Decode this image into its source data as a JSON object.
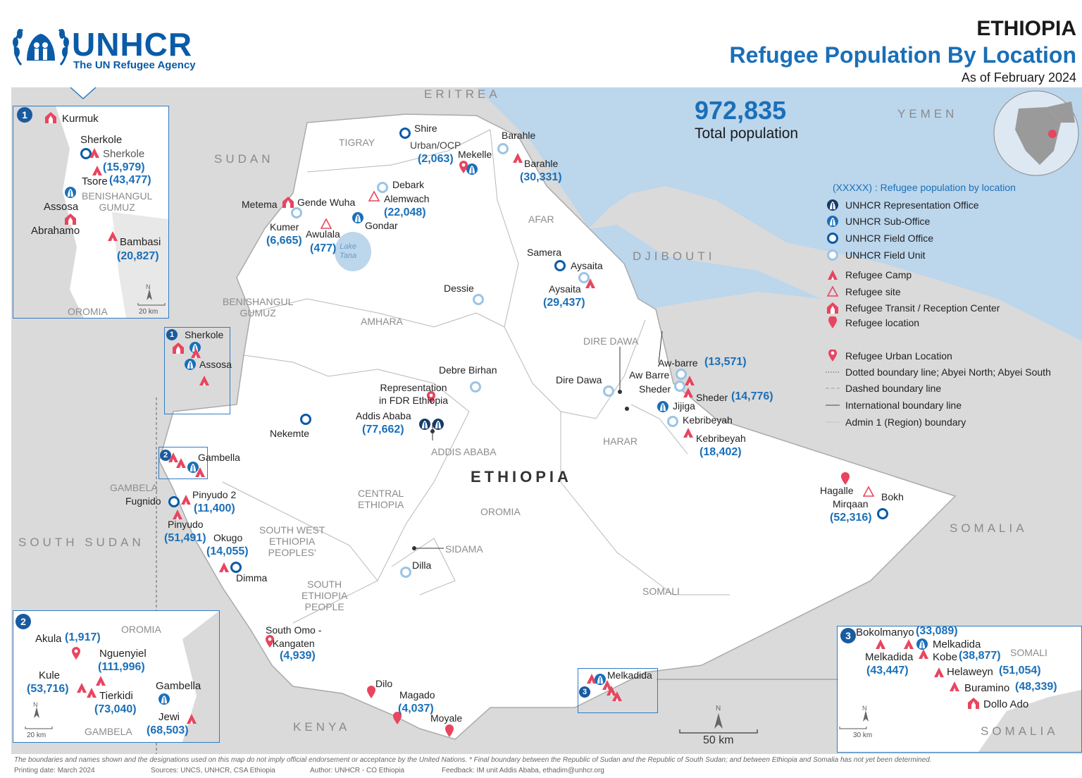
{
  "header": {
    "logo_main": "UNHCR",
    "logo_sub": "The UN Refugee Agency",
    "country": "ETHIOPIA",
    "title": "Refugee Population By Location",
    "date": "As of February 2024"
  },
  "total": {
    "value": "972,835",
    "label": "Total population"
  },
  "countries": {
    "eritrea": "ERITREA",
    "sudan": "SUDAN",
    "djibouti": "DJIBOUTI",
    "yemen": "YEMEN",
    "south_sudan": "SOUTH SUDAN",
    "somalia": "SOMALIA",
    "kenya": "KENYA",
    "ethiopia": "ETHIOPIA"
  },
  "regions": {
    "tigray": "TIGRAY",
    "afar": "AFAR",
    "amhara": "AMHARA",
    "benishangul": "BENISHANGUL\nGUMUZ",
    "dire_dawa": "DIRE DAWA",
    "harar": "HARAR",
    "addis": "ADDIS ABABA",
    "oromia": "OROMIA",
    "central": "CENTRAL\nETHIOPIA",
    "gambela": "GAMBELA",
    "sw": "SOUTH WEST\nETHIOPIA\nPEOPLES'",
    "sidama": "SIDAMA",
    "south": "SOUTH\nETHIOPIA\nPEOPLE",
    "somali": "SOMALI"
  },
  "locations": {
    "shire": "Shire",
    "urban_ocp": "Urban/OCP",
    "urban_ocp_pop": "(2,063)",
    "mekelle": "Mekelle",
    "barahle_fu": "Barahle",
    "barahle": "Barahle",
    "barahle_pop": "(30,331)",
    "debark": "Debark",
    "alemwach": "Alemwach",
    "alemwach_pop": "(22,048)",
    "metema": "Metema",
    "gende_wuha": "Gende Wuha",
    "kumer": "Kumer",
    "kumer_pop": "(6,665)",
    "awulala": "Awulala",
    "awulala_pop": "(477)",
    "gondar": "Gondar",
    "lake_tana": "Lake\nTana",
    "samera": "Samera",
    "aysaita_fo": "Aysaita",
    "aysaita": "Aysaita",
    "aysaita_pop": "(29,437)",
    "dessie": "Dessie",
    "debre_birhan": "Debre Birhan",
    "representation": "Representation\nin FDR Ethiopia",
    "addis": "Addis Ababa",
    "addis_pop": "(77,662)",
    "nekemte": "Nekemte",
    "dire_dawa": "Dire Dawa",
    "aw_barre": "Aw Barre",
    "aw_barre2": "Aw-barre",
    "aw_barre_pop": "(13,571)",
    "sheder": "Sheder",
    "sheder2": "Sheder",
    "sheder_pop": "(14,776)",
    "jijiga": "Jijiga",
    "kebribeyah_fu": "Kebribeyah",
    "kebribeyah": "Kebribeyah",
    "kebribeyah_pop": "(18,402)",
    "hagalle": "Hagalle",
    "mirqaan": "Mirqaan",
    "bokh": "Bokh",
    "bokh_pop": "(52,316)",
    "sherkole": "Sherkole",
    "assosa": "Assosa",
    "gambella": "Gambella",
    "fugnido": "Fugnido",
    "pinyudo2": "Pinyudo 2",
    "pinyudo2_pop": "(11,400)",
    "pinyudo": "Pinyudo",
    "pinyudo_pop": "(51,491)",
    "okugo": "Okugo",
    "okugo_pop": "(14,055)",
    "dimma": "Dimma",
    "dilla": "Dilla",
    "south_omo": "South Omo -\nKangaten",
    "south_omo_pop": "(4,939)",
    "dilo": "Dilo",
    "magado": "Magado",
    "magado_pop": "(4,037)",
    "moyale": "Moyale",
    "melkadida": "Melkadida"
  },
  "inset1": {
    "num": "1",
    "kurmuk": "Kurmuk",
    "sherkole_lbl": "Sherkole",
    "sherkole_camp": "Sherkole",
    "sherkole_pop": "(15,979)",
    "tsore": "Tsore",
    "tsore_pop": "(43,477)",
    "benishangul": "BENISHANGUL\nGUMUZ",
    "assosa": "Assosa",
    "abrahamo": "Abrahamo",
    "bambasi": "Bambasi",
    "bambasi_pop": "(20,827)",
    "oromia": "OROMIA",
    "scale": "20 km",
    "north": "N"
  },
  "inset2": {
    "num": "2",
    "oromia": "OROMIA",
    "akula": "Akula",
    "akula_pop": "(1,917)",
    "nguenyiel": "Nguenyiel",
    "nguenyiel_pop": "(111,996)",
    "kule": "Kule",
    "kule_pop": "(53,716)",
    "tierkidi": "Tierkidi",
    "tierkidi_pop": "(73,040)",
    "gambella": "Gambella",
    "jewi": "Jewi",
    "jewi_pop": "(68,503)",
    "gambela": "GAMBELA",
    "scale": "20 km",
    "north": "N"
  },
  "inset3": {
    "num": "3",
    "bokolmanyo": "Bokolmanyo",
    "bokolmanyo_pop": "(33,089)",
    "melkadida_fo": "Melkadida",
    "somali": "SOMALI",
    "melkadida": "Melkadida",
    "melkadida_pop": "(43,447)",
    "kobe": "Kobe",
    "kobe_pop": "(38,877)",
    "helaweyn": "Helaweyn",
    "helaweyn_pop": "(51,054)",
    "buramino": "Buramino",
    "buramino_pop": "(48,339)",
    "dollo_ado": "Dollo Ado",
    "somalia": "SOMALIA",
    "scale": "30 km",
    "north": "N"
  },
  "inset_markers": {
    "one": "1",
    "two": "2",
    "three": "3"
  },
  "scalebar": {
    "label": "50 km",
    "north": "N"
  },
  "legend": {
    "heading": "(XXXXX) : Refugee population by location",
    "rep_office": "UNHCR Representation Office",
    "sub_office": "UNHCR Sub-Office",
    "field_office": "UNHCR Field Office",
    "field_unit": "UNHCR Field Unit",
    "camp": "Refugee Camp",
    "site": "Refugee site",
    "transit": "Refugee Transit / Reception Center",
    "location": "Refugee location",
    "urban": "Refugee Urban Location",
    "dotted": "Dotted boundary line; Abyei North; Abyei South",
    "dashed": "Dashed boundary line",
    "international": "International boundary line",
    "admin1": "Admin 1 (Region) boundary"
  },
  "footer": {
    "disclaimer": "The boundaries and names shown and the designations used on this map do not imply official endorsement or acceptance by the United Nations. * Final boundary between the Republic of Sudan and the Republic of South Sudan; and between Ethiopia and Somalia has not yet been determined.",
    "printing": "Printing date:   March 2024",
    "sources": "Sources:   UNCS, UNHCR, CSA Ethiopia",
    "author": "Author:   UNHCR - CO Ethiopia",
    "feedback": "Feedback:   IM unit Addis Ababa, ethadim@unhcr.org"
  },
  "colors": {
    "unhcr_blue": "#1a6fb8",
    "camp_red": "#e8455f",
    "land_grey": "#dadada",
    "sea": "#bcd6ec",
    "ethiopia": "#ffffff"
  }
}
